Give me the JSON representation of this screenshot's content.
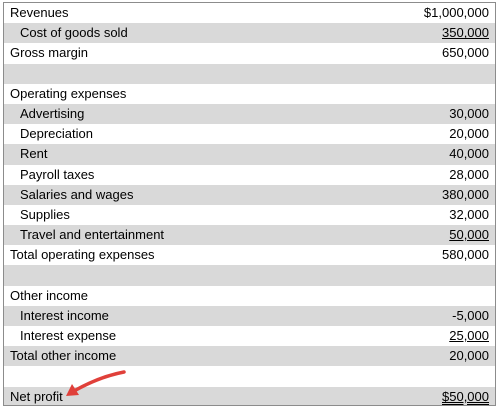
{
  "rows": [
    {
      "label": "Revenues",
      "amount": "$1,000,000"
    },
    {
      "label": "Cost of goods sold",
      "amount": "350,000"
    },
    {
      "label": "Gross margin",
      "amount": "650,000"
    },
    {
      "label": "",
      "amount": ""
    },
    {
      "label": "Operating expenses",
      "amount": ""
    },
    {
      "label": "Advertising",
      "amount": "30,000"
    },
    {
      "label": "Depreciation",
      "amount": "20,000"
    },
    {
      "label": "Rent",
      "amount": "40,000"
    },
    {
      "label": "Payroll taxes",
      "amount": "28,000"
    },
    {
      "label": "Salaries and wages",
      "amount": "380,000"
    },
    {
      "label": "Supplies",
      "amount": "32,000"
    },
    {
      "label": "Travel and entertainment",
      "amount": "50,000"
    },
    {
      "label": "Total operating expenses",
      "amount": "580,000"
    },
    {
      "label": "",
      "amount": ""
    },
    {
      "label": "Other income",
      "amount": ""
    },
    {
      "label": "Interest income",
      "amount": "-5,000"
    },
    {
      "label": "Interest expense",
      "amount": "25,000"
    },
    {
      "label": "Total other income",
      "amount": "20,000"
    },
    {
      "label": "",
      "amount": ""
    },
    {
      "label": "Net profit",
      "amount": "$50,000"
    }
  ],
  "colors": {
    "shaded_row": "#d9d9d9",
    "border": "#8c8c8c",
    "arrow": "#e0403a"
  },
  "icons": {
    "pointer": "red-arrow-icon"
  }
}
